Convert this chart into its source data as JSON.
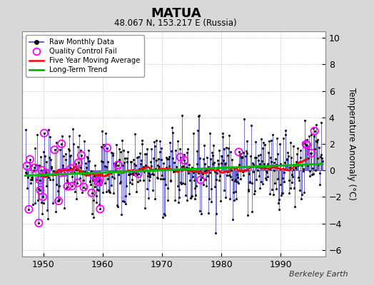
{
  "title": "MATUA",
  "subtitle": "48.067 N, 153.217 E (Russia)",
  "ylabel": "Temperature Anomaly (°C)",
  "watermark": "Berkeley Earth",
  "ylim": [
    -6.5,
    10.5
  ],
  "xlim": [
    1946.5,
    1997.5
  ],
  "yticks": [
    -6,
    -4,
    -2,
    0,
    2,
    4,
    6,
    8,
    10
  ],
  "xticks": [
    1950,
    1960,
    1970,
    1980,
    1990
  ],
  "fig_bg_color": "#d8d8d8",
  "plot_bg_color": "#ffffff",
  "raw_line_color": "#4444cc",
  "raw_marker_color": "#111111",
  "qc_fail_color": "#ff00ff",
  "moving_avg_color": "#ff0000",
  "trend_color": "#00bb00",
  "grid_color": "#cccccc",
  "seed_data": 7,
  "seed_qc": 99,
  "start_year": 1947,
  "end_year": 1997,
  "noise_std": 2.0,
  "trend_slope": 0.018
}
